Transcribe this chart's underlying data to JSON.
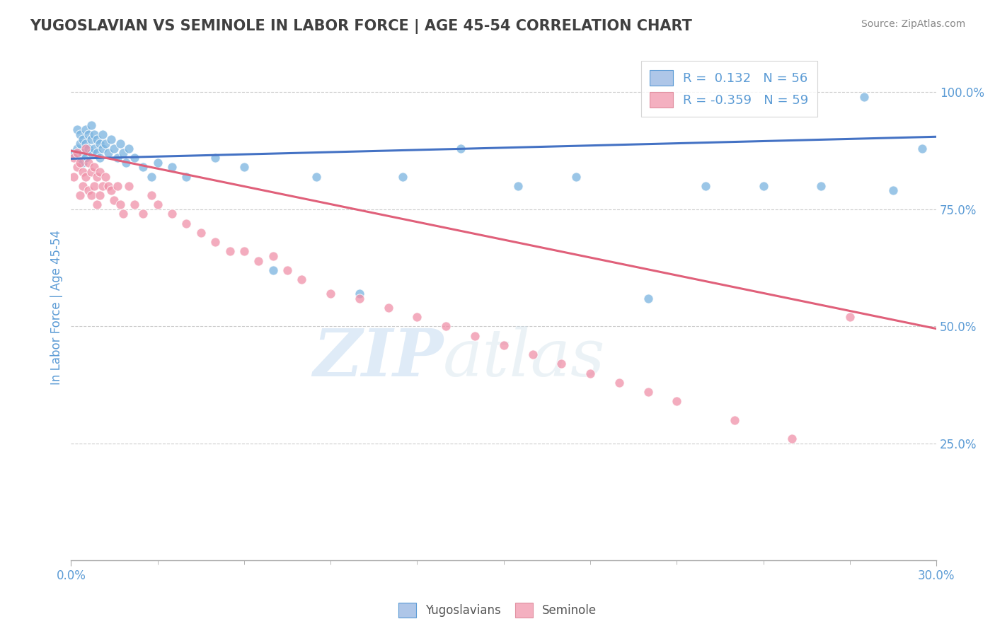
{
  "title": "YUGOSLAVIAN VS SEMINOLE IN LABOR FORCE | AGE 45-54 CORRELATION CHART",
  "source": "Source: ZipAtlas.com",
  "ylabel": "In Labor Force | Age 45-54",
  "xlim": [
    0.0,
    0.3
  ],
  "ylim": [
    0.0,
    1.08
  ],
  "yticks": [
    0.25,
    0.5,
    0.75,
    1.0
  ],
  "ytick_labels": [
    "25.0%",
    "50.0%",
    "75.0%",
    "100.0%"
  ],
  "blue_scatter_x": [
    0.001,
    0.002,
    0.002,
    0.003,
    0.003,
    0.003,
    0.004,
    0.004,
    0.004,
    0.005,
    0.005,
    0.005,
    0.006,
    0.006,
    0.007,
    0.007,
    0.007,
    0.008,
    0.008,
    0.009,
    0.009,
    0.01,
    0.01,
    0.011,
    0.011,
    0.012,
    0.013,
    0.014,
    0.015,
    0.016,
    0.017,
    0.018,
    0.019,
    0.02,
    0.022,
    0.025,
    0.028,
    0.03,
    0.035,
    0.04,
    0.05,
    0.06,
    0.07,
    0.085,
    0.1,
    0.115,
    0.135,
    0.155,
    0.175,
    0.2,
    0.22,
    0.24,
    0.26,
    0.275,
    0.285,
    0.295
  ],
  "blue_scatter_y": [
    0.87,
    0.92,
    0.88,
    0.91,
    0.89,
    0.86,
    0.9,
    0.87,
    0.85,
    0.92,
    0.89,
    0.86,
    0.91,
    0.88,
    0.93,
    0.9,
    0.87,
    0.91,
    0.88,
    0.9,
    0.87,
    0.89,
    0.86,
    0.91,
    0.88,
    0.89,
    0.87,
    0.9,
    0.88,
    0.86,
    0.89,
    0.87,
    0.85,
    0.88,
    0.86,
    0.84,
    0.82,
    0.85,
    0.84,
    0.82,
    0.86,
    0.84,
    0.62,
    0.82,
    0.57,
    0.82,
    0.88,
    0.8,
    0.82,
    0.56,
    0.8,
    0.8,
    0.8,
    0.99,
    0.79,
    0.88
  ],
  "pink_scatter_x": [
    0.001,
    0.001,
    0.002,
    0.002,
    0.003,
    0.003,
    0.004,
    0.004,
    0.005,
    0.005,
    0.006,
    0.006,
    0.007,
    0.007,
    0.008,
    0.008,
    0.009,
    0.009,
    0.01,
    0.01,
    0.011,
    0.012,
    0.013,
    0.014,
    0.015,
    0.016,
    0.017,
    0.018,
    0.02,
    0.022,
    0.025,
    0.028,
    0.03,
    0.035,
    0.04,
    0.045,
    0.05,
    0.055,
    0.06,
    0.065,
    0.07,
    0.075,
    0.08,
    0.09,
    0.1,
    0.11,
    0.12,
    0.13,
    0.14,
    0.15,
    0.16,
    0.17,
    0.18,
    0.19,
    0.2,
    0.21,
    0.23,
    0.25,
    0.27
  ],
  "pink_scatter_y": [
    0.86,
    0.82,
    0.87,
    0.84,
    0.85,
    0.78,
    0.83,
    0.8,
    0.88,
    0.82,
    0.85,
    0.79,
    0.83,
    0.78,
    0.84,
    0.8,
    0.82,
    0.76,
    0.83,
    0.78,
    0.8,
    0.82,
    0.8,
    0.79,
    0.77,
    0.8,
    0.76,
    0.74,
    0.8,
    0.76,
    0.74,
    0.78,
    0.76,
    0.74,
    0.72,
    0.7,
    0.68,
    0.66,
    0.66,
    0.64,
    0.65,
    0.62,
    0.6,
    0.57,
    0.56,
    0.54,
    0.52,
    0.5,
    0.48,
    0.46,
    0.44,
    0.42,
    0.4,
    0.38,
    0.36,
    0.34,
    0.3,
    0.26,
    0.52
  ],
  "blue_line_x": [
    0.0,
    0.3
  ],
  "blue_line_y": [
    0.858,
    0.905
  ],
  "pink_line_x": [
    0.0,
    0.3
  ],
  "pink_line_y": [
    0.875,
    0.495
  ],
  "blue_scatter_color": "#7ab4e0",
  "pink_scatter_color": "#f090a8",
  "blue_line_color": "#4472c4",
  "pink_line_color": "#e0607a",
  "legend_blue_face": "#aec6e8",
  "legend_pink_face": "#f4b0c0",
  "legend_blue_text": "R =  0.132   N = 56",
  "legend_pink_text": "R = -0.359   N = 59",
  "watermark_zip": "ZIP",
  "watermark_atlas": "atlas",
  "background_color": "#ffffff",
  "grid_color": "#cccccc",
  "title_color": "#404040",
  "axis_label_color": "#5b9bd5",
  "tick_color": "#5b9bd5",
  "source_color": "#888888"
}
